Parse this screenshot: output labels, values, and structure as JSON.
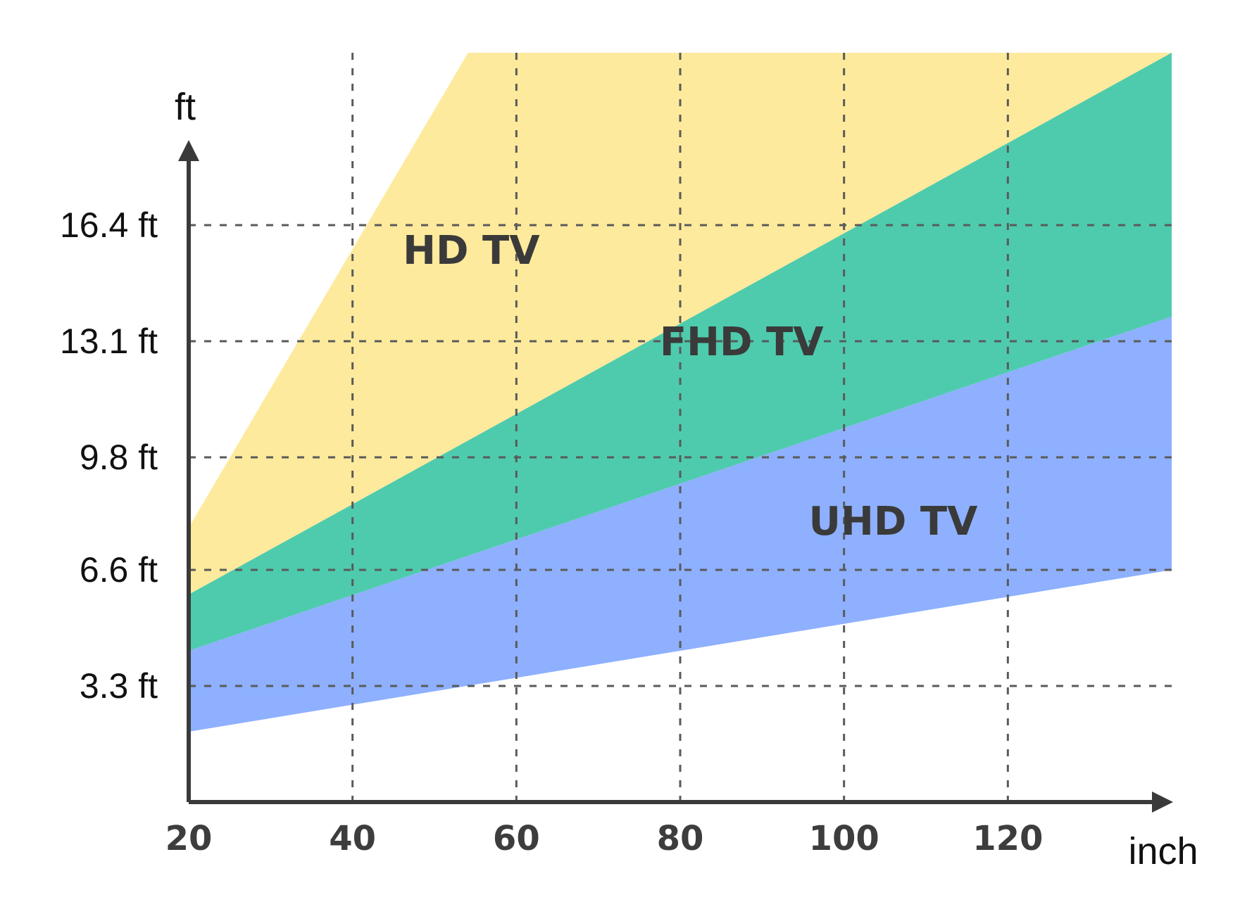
{
  "chart_data": {
    "type": "area",
    "xlabel": "inch",
    "ylabel": "ft",
    "x_ticks": [
      20,
      40,
      60,
      80,
      100,
      120
    ],
    "y_ticks": [
      3.3,
      6.6,
      9.8,
      13.1,
      16.4
    ],
    "y_tick_labels": [
      "3.3 ft",
      "6.6 ft",
      "9.8 ft",
      "13.1 ft",
      "16.4 ft"
    ],
    "xlim": [
      20,
      140
    ],
    "ylim": [
      0,
      21.3
    ],
    "grid": true,
    "series": [
      {
        "name": "HD TV",
        "x": [
          20,
          54.1,
          140
        ],
        "lower": [
          5.9,
          null,
          21.3
        ],
        "upper": [
          7.8,
          21.3,
          21.3
        ],
        "color": "#FDEA9C"
      },
      {
        "name": "FHD TV",
        "x": [
          20,
          140
        ],
        "lower": [
          4.3,
          13.8
        ],
        "upper": [
          5.9,
          21.3
        ],
        "color": "#4ECBAD"
      },
      {
        "name": "UHD TV",
        "x": [
          20,
          140
        ],
        "lower": [
          2.0,
          6.6
        ],
        "upper": [
          4.3,
          13.8
        ],
        "color": "#8EB0FF"
      }
    ],
    "band_labels": [
      {
        "text": "HD TV",
        "x": 54.5,
        "y": 15.3
      },
      {
        "text": "FHD TV",
        "x": 87.5,
        "y": 12.7
      },
      {
        "text": "UHD TV",
        "x": 106,
        "y": 7.6
      }
    ]
  }
}
